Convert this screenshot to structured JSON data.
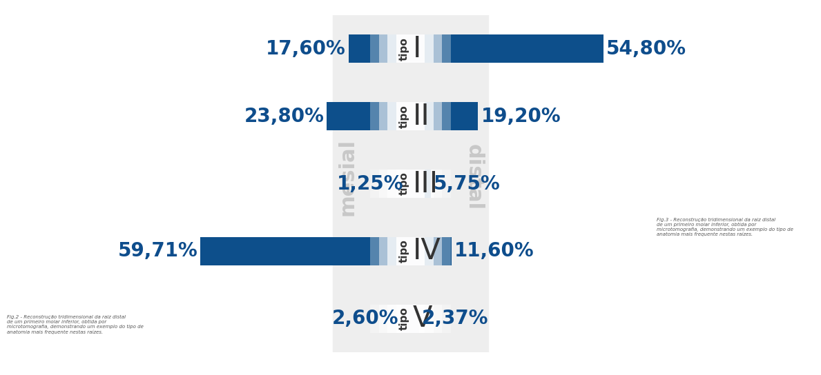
{
  "chart_data": {
    "type": "bar",
    "orientation": "horizontal",
    "diverging": true,
    "category_label": "tipo",
    "categories": [
      "I",
      "II",
      "III",
      "IV",
      "V"
    ],
    "series": [
      {
        "name": "mesial",
        "color": "#0d4f8b",
        "values": [
          17.6,
          23.8,
          1.25,
          59.71,
          2.6
        ],
        "value_labels": [
          "17,60%",
          "23,80%",
          "1,25%",
          "59,71%",
          "2,60%"
        ]
      },
      {
        "name": "distal",
        "color": "#0d4f8b",
        "values": [
          54.8,
          19.2,
          5.75,
          11.6,
          2.37
        ],
        "value_labels": [
          "54,80%",
          "19,20%",
          "5,75%",
          "11,60%",
          "2,37%"
        ]
      }
    ],
    "xlim": [
      -70,
      70
    ],
    "data_labels": true,
    "tick_labels": false,
    "grid": false,
    "annotations": [
      "Fig.2 - Reconstrução tridimensional da raiz distal de um primeiro molar inferior, obtida por microtomografia, demonstrando um exemplo do tipo de anatomia mais frequente nestas raízes.",
      "Fig.3 - Reconstrução tridimensional da raiz distal de um primeiro molar inferior, obtida por microtomografia, demonstrando um exemplo do tipo de anatomia mais frequente nestas raízes."
    ]
  }
}
